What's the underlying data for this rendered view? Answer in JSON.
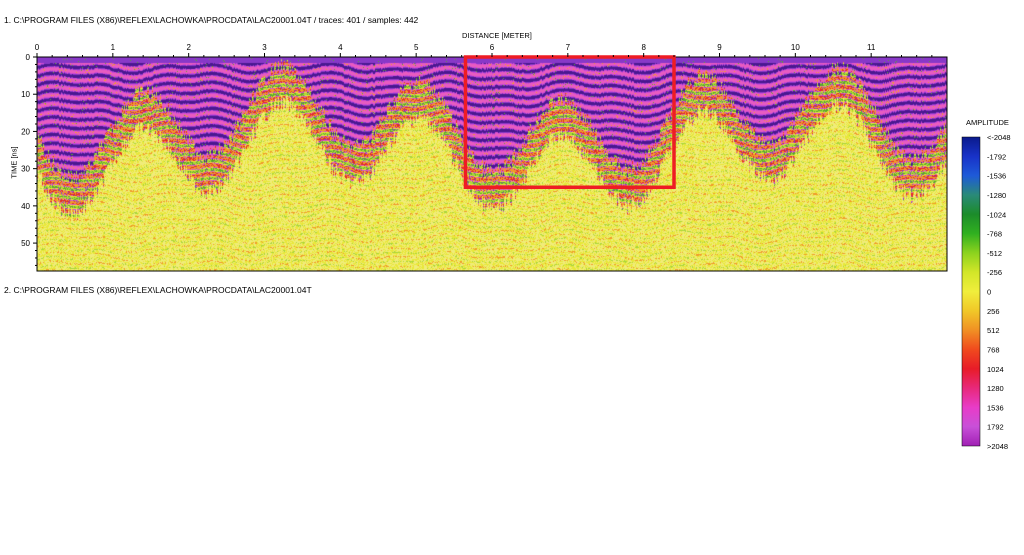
{
  "header": {
    "line1": "1. C:\\PROGRAM FILES (X86)\\REFLEX\\LACHOWKA\\PROCDATA\\LAC20001.04T / traces: 401 / samples: 442",
    "line2": "2. C:\\PROGRAM FILES (X86)\\REFLEX\\LACHOWKA\\PROCDATA\\LAC20001.04T"
  },
  "chart_data": {
    "type": "heatmap",
    "title": "",
    "xlabel": "DISTANCE [METER]",
    "ylabel": "TIME [ns]",
    "xlim": [
      0,
      12
    ],
    "ylim": [
      0,
      57.5
    ],
    "x_ticks": [
      "0",
      "1",
      "2",
      "3",
      "4",
      "5",
      "6",
      "7",
      "8",
      "9",
      "10",
      "11"
    ],
    "y_ticks": [
      "0",
      "10",
      "20",
      "30",
      "40",
      "50"
    ],
    "traces": 401,
    "samples": 442,
    "colorbar": {
      "title": "AMPLITUDE",
      "labels": [
        "<-2048",
        "-1792",
        "-1536",
        "-1280",
        "-1024",
        "-768",
        "-512",
        "-256",
        "0",
        "256",
        "512",
        "768",
        "1024",
        "1280",
        "1536",
        "1792",
        ">2048"
      ],
      "colors": [
        "#0a1a8c",
        "#1832c8",
        "#1e5ad8",
        "#2a8a78",
        "#1c8c2a",
        "#30b020",
        "#8cd21e",
        "#d2e628",
        "#f0ee3c",
        "#f0c828",
        "#f09024",
        "#f04a1e",
        "#e81c28",
        "#e8287a",
        "#e83cc8",
        "#c850d8",
        "#a020b4"
      ]
    },
    "highlight_box": {
      "x": [
        5.65,
        8.4
      ],
      "y": [
        0,
        35
      ],
      "color": "#ee1c24"
    },
    "palette": {
      "deep": "#4a1890",
      "purple": "#8838c8",
      "magenta": "#d24ad6",
      "pink": "#e85cc0",
      "red": "#e02a2a",
      "orange": "#f09a2a",
      "yellow": "#e8e838",
      "pale": "#f0ec7a",
      "green": "#5aa82a",
      "lime": "#a8d63a",
      "blue": "#1a4ac8"
    }
  }
}
